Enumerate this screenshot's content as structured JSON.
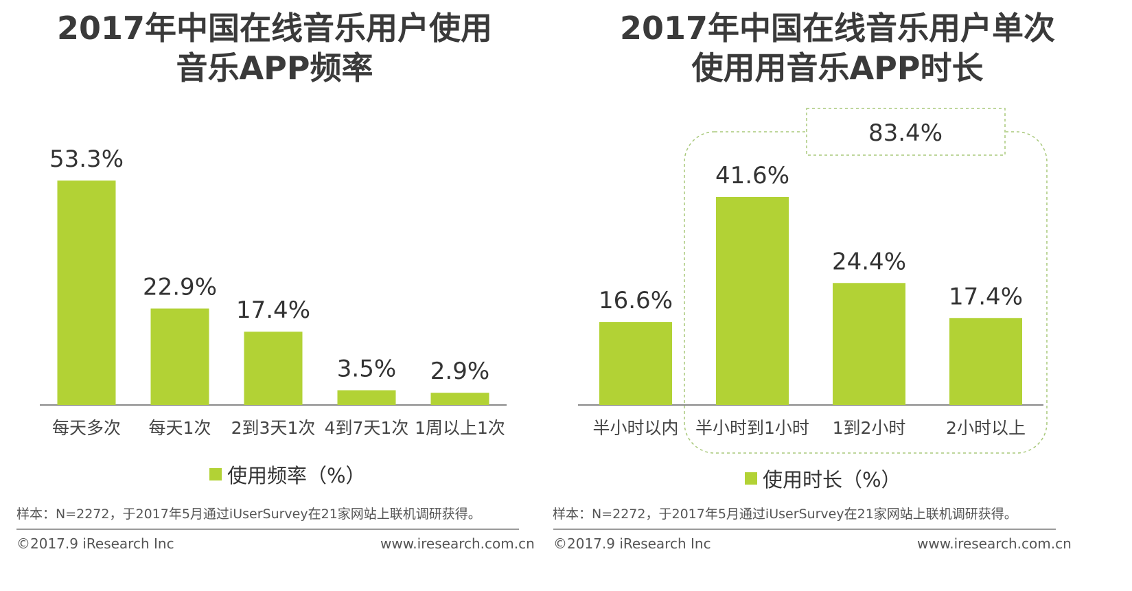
{
  "colors": {
    "bar": "#b2d235",
    "highlight_border": "#a8c87a",
    "text": "#333333"
  },
  "left": {
    "title_line1": "2017年中国在线音乐用户使用",
    "title_line2": "音乐APP频率",
    "legend": "使用频率（%）",
    "footnote": "样本：N=2272，于2017年5月通过iUserSurvey在21家网站上联机调研获得。",
    "copyright": "©2017.9 iResearch Inc",
    "website": "www.iresearch.com.cn"
  },
  "right": {
    "title_line1": "2017年中国在线音乐用户单次",
    "title_line2": "使用用音乐APP时长",
    "legend": "使用时长（%）",
    "highlight_total": "83.4%",
    "footnote": "样本：N=2272，于2017年5月通过iUserSurvey在21家网站上联机调研获得。",
    "copyright": "©2017.9 iResearch Inc",
    "website": "www.iresearch.com.cn"
  },
  "chart_data": [
    {
      "type": "bar",
      "title": "2017年中国在线音乐用户使用音乐APP频率",
      "categories": [
        "每天多次",
        "每天1次",
        "2到3天1次",
        "4到7天1次",
        "1周以上1次"
      ],
      "series": [
        {
          "name": "使用频率（%）",
          "values": [
            53.3,
            22.9,
            17.4,
            3.5,
            2.9
          ]
        }
      ],
      "value_labels": [
        "53.3%",
        "22.9%",
        "17.4%",
        "3.5%",
        "2.9%"
      ],
      "ylim": [
        0,
        53.3
      ],
      "grid": false,
      "legend_position": "bottom"
    },
    {
      "type": "bar",
      "title": "2017年中国在线音乐用户单次使用用音乐APP时长",
      "categories": [
        "半小时以内",
        "半小时到1小时",
        "1到2小时",
        "2小时以上"
      ],
      "series": [
        {
          "name": "使用时长（%）",
          "values": [
            16.6,
            41.6,
            24.4,
            17.4
          ]
        }
      ],
      "value_labels": [
        "16.6%",
        "41.6%",
        "24.4%",
        "17.4%"
      ],
      "ylim": [
        0,
        41.6
      ],
      "grid": false,
      "legend_position": "bottom",
      "annotation": "83.4%"
    }
  ]
}
